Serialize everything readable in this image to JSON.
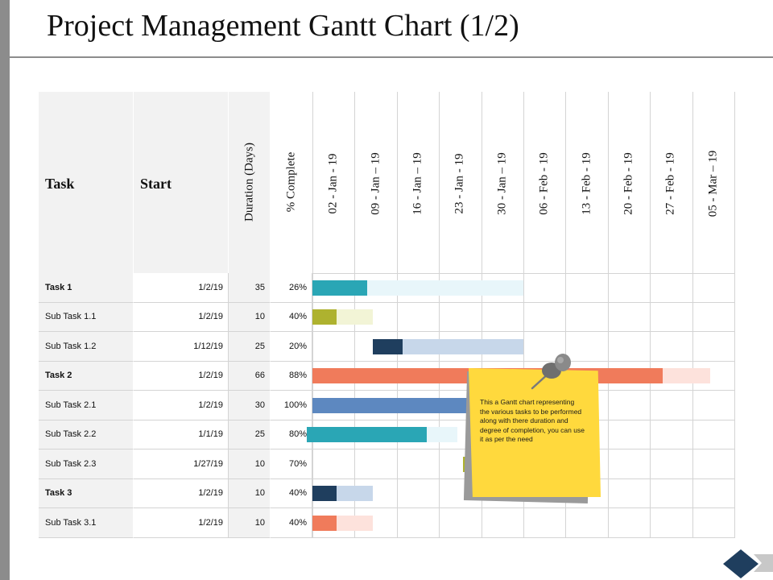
{
  "title": "Project Management Gantt Chart (1/2)",
  "headers": {
    "task": "Task",
    "start": "Start",
    "duration": "Duration (Days)",
    "complete": "% Complete",
    "weeks": [
      "02 - Jan - 19",
      "09 - Jan – 19",
      "16 - Jan – 19",
      "23 - Jan - 19",
      "30 - Jan – 19",
      "06 - Feb - 19",
      "13 - Feb - 19",
      "20 - Feb - 19",
      "27 - Feb - 19",
      "05 - Mar – 19"
    ]
  },
  "rows": [
    {
      "task": "Task 1",
      "start": "1/2/19",
      "duration": "35",
      "complete": "26%",
      "bold": true,
      "done_color": "#2aa6b5",
      "remain_color": "#e8f6fa"
    },
    {
      "task": "Sub Task 1.1",
      "start": "1/2/19",
      "duration": "10",
      "complete": "40%",
      "bold": false,
      "done_color": "#aeb22f",
      "remain_color": "#f2f4d6"
    },
    {
      "task": "Sub Task 1.2",
      "start": "1/12/19",
      "duration": "25",
      "complete": "20%",
      "bold": false,
      "done_color": "#1f3e5e",
      "remain_color": "#c7d7ea"
    },
    {
      "task": "Task 2",
      "start": "1/2/19",
      "duration": "66",
      "complete": "88%",
      "bold": true,
      "done_color": "#f07b5b",
      "remain_color": "#fde2dc"
    },
    {
      "task": "Sub Task 2.1",
      "start": "1/2/19",
      "duration": "30",
      "complete": "100%",
      "bold": false,
      "done_color": "#5d88c0",
      "remain_color": "#d6e2f1"
    },
    {
      "task": "Sub Task 2.2",
      "start": "1/1/19",
      "duration": "25",
      "complete": "80%",
      "bold": false,
      "done_color": "#2aa6b5",
      "remain_color": "#e8f6fa"
    },
    {
      "task": "Sub Task 2.3",
      "start": "1/27/19",
      "duration": "10",
      "complete": "70%",
      "bold": false,
      "done_color": "#aeb22f",
      "remain_color": "#f2f4d6"
    },
    {
      "task": "Task 3",
      "start": "1/2/19",
      "duration": "10",
      "complete": "40%",
      "bold": true,
      "done_color": "#1f3e5e",
      "remain_color": "#c7d7ea"
    },
    {
      "task": "Sub Task 3.1",
      "start": "1/2/19",
      "duration": "10",
      "complete": "40%",
      "bold": false,
      "done_color": "#f07b5b",
      "remain_color": "#fde2dc"
    }
  ],
  "sticky_note": {
    "text": "This a Gantt chart representing the various tasks  to be performed along with there duration and degree of completion, you can use it as  per the need",
    "color": "#ffd93d"
  }
}
